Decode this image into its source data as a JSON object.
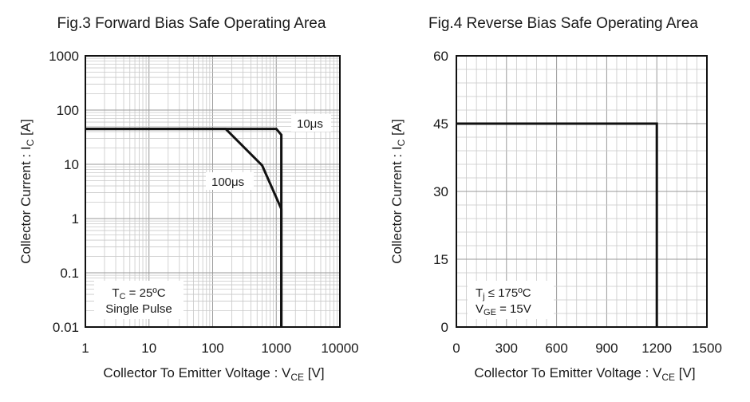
{
  "chart_data": [
    {
      "type": "line",
      "title": "Fig.3 Forward Bias Safe Operating Area",
      "xlabel": "Collector To Emitter Voltage : V",
      "xlabel_sub": "CE",
      "xlabel_unit": " [V]",
      "ylabel": "Collector Current : I",
      "ylabel_sub": "C",
      "ylabel_unit": " [A]",
      "xscale": "log",
      "yscale": "log",
      "xlim": [
        1,
        10000
      ],
      "ylim": [
        0.01,
        1000
      ],
      "grid": true,
      "x_ticks": [
        "1",
        "10",
        "100",
        "1000",
        "10000"
      ],
      "y_ticks": [
        "0.01",
        "0.1",
        "1",
        "10",
        "100",
        "1000"
      ],
      "series": [
        {
          "name": "10μs",
          "x": [
            1,
            1000,
            1200,
            1200
          ],
          "y": [
            45,
            45,
            35,
            0.01
          ]
        },
        {
          "name": "100μs",
          "x": [
            1,
            160,
            600,
            1200,
            1200
          ],
          "y": [
            45,
            45,
            9.5,
            1.5,
            0.01
          ]
        }
      ],
      "annotation": {
        "tc_main": "T",
        "tc_sub": "C",
        "tc_rest": " = 25ºC",
        "pulse": "Single Pulse"
      }
    },
    {
      "type": "line",
      "title": "Fig.4 Reverse Bias Safe Operating Area",
      "xlabel": "Collector To Emitter Voltage : V",
      "xlabel_sub": "CE",
      "xlabel_unit": " [V]",
      "ylabel": "Collector Current : I",
      "ylabel_sub": "C",
      "ylabel_unit": " [A]",
      "xlim": [
        0,
        1500
      ],
      "ylim": [
        0,
        60
      ],
      "grid": true,
      "x_ticks": [
        0,
        300,
        600,
        900,
        1200,
        1500
      ],
      "y_ticks": [
        0,
        15,
        30,
        45,
        60
      ],
      "series": [
        {
          "x": [
            0,
            1200,
            1200
          ],
          "y": [
            45,
            45,
            0
          ]
        }
      ],
      "annotation": {
        "tj_main": "T",
        "tj_sub": "j",
        "tj_rest": " ≤ 175ºC",
        "vge_main": "V",
        "vge_sub": "GE",
        "vge_rest": " = 15V"
      }
    }
  ],
  "colors": {
    "curve": "#111111",
    "grid_major": "#9a9a9a",
    "grid_minor": "#c8c8c8"
  }
}
